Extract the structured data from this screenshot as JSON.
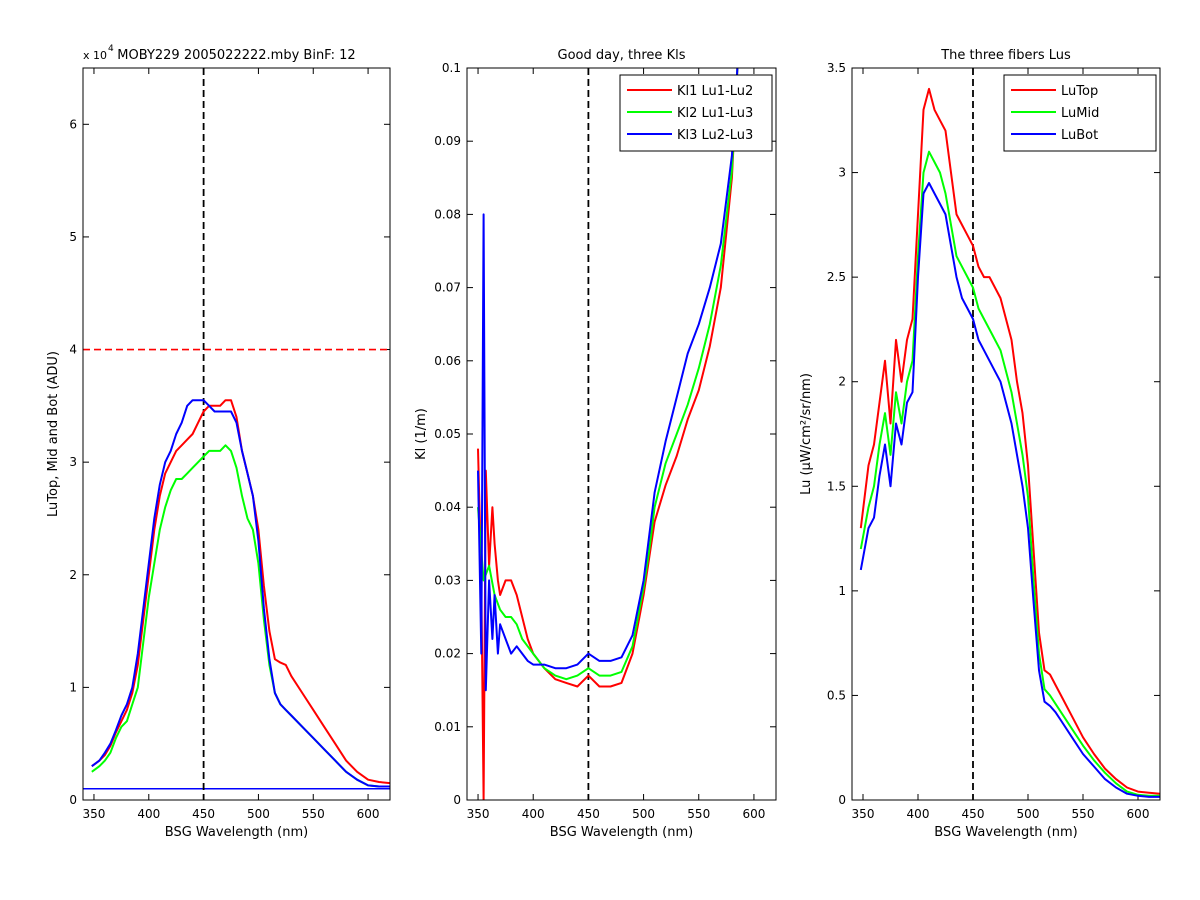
{
  "figure": {
    "background": "#ffffff"
  },
  "chart_data": [
    {
      "type": "line",
      "title": "MOBY229  2005022222.mby BinF: 12",
      "xlabel": "BSG Wavelength (nm)",
      "ylabel": "LuTop, Mid and Bot (ADU)",
      "exponent_label": "x 10",
      "exponent_power": "4",
      "xlim": [
        340,
        620
      ],
      "ylim": [
        0,
        65000
      ],
      "xticks": [
        350,
        400,
        450,
        500,
        550,
        600
      ],
      "yticks": [
        0,
        10000,
        20000,
        30000,
        40000,
        50000,
        60000
      ],
      "ytick_labels": [
        "0",
        "1",
        "2",
        "3",
        "4",
        "5",
        "6"
      ],
      "vline": {
        "x": 450,
        "color": "#000000"
      },
      "hlines": [
        {
          "y": 40000,
          "color": "#ff0000",
          "dashed": true
        },
        {
          "y": 1000,
          "color": "#0000ff",
          "dashed": false
        }
      ],
      "series": [
        {
          "color": "#ff0000",
          "x": [
            348,
            355,
            360,
            365,
            370,
            375,
            380,
            385,
            390,
            395,
            400,
            405,
            410,
            415,
            420,
            425,
            430,
            435,
            440,
            445,
            450,
            455,
            460,
            465,
            470,
            475,
            480,
            485,
            490,
            495,
            500,
            505,
            510,
            515,
            520,
            525,
            530,
            540,
            550,
            560,
            570,
            580,
            590,
            600,
            610,
            620
          ],
          "y": [
            3000,
            3500,
            4000,
            4800,
            6000,
            7000,
            8000,
            9500,
            12000,
            16000,
            20000,
            24000,
            27000,
            29000,
            30000,
            31000,
            31500,
            32000,
            32500,
            33500,
            34500,
            35000,
            35000,
            35000,
            35500,
            35500,
            34000,
            31000,
            29000,
            27000,
            24000,
            19000,
            15000,
            12500,
            12200,
            12000,
            11000,
            9500,
            8000,
            6500,
            5000,
            3500,
            2500,
            1800,
            1600,
            1500
          ]
        },
        {
          "color": "#00ff00",
          "x": [
            348,
            355,
            360,
            365,
            370,
            375,
            380,
            385,
            390,
            395,
            400,
            405,
            410,
            415,
            420,
            425,
            430,
            435,
            440,
            445,
            450,
            455,
            460,
            465,
            470,
            475,
            480,
            485,
            490,
            495,
            500,
            505,
            510,
            515,
            520,
            525,
            530,
            540,
            550,
            560,
            570,
            580,
            590,
            600,
            610,
            620
          ],
          "y": [
            2500,
            3000,
            3500,
            4200,
            5500,
            6500,
            7000,
            8500,
            10000,
            14000,
            18000,
            21000,
            24000,
            26000,
            27500,
            28500,
            28500,
            29000,
            29500,
            30000,
            30500,
            31000,
            31000,
            31000,
            31500,
            31000,
            29500,
            27000,
            25000,
            24000,
            21000,
            16000,
            12000,
            9500,
            8500,
            8000,
            7500,
            6500,
            5500,
            4500,
            3500,
            2500,
            1800,
            1300,
            1200,
            1200
          ]
        },
        {
          "color": "#0000ff",
          "x": [
            348,
            355,
            360,
            365,
            370,
            375,
            380,
            385,
            390,
            395,
            400,
            405,
            410,
            415,
            420,
            425,
            430,
            435,
            440,
            445,
            450,
            455,
            460,
            465,
            470,
            475,
            480,
            485,
            490,
            495,
            500,
            505,
            510,
            515,
            520,
            525,
            530,
            540,
            550,
            560,
            570,
            580,
            590,
            600,
            610,
            620
          ],
          "y": [
            3000,
            3500,
            4200,
            5000,
            6200,
            7500,
            8500,
            10000,
            13000,
            17000,
            21000,
            25000,
            28000,
            30000,
            31000,
            32500,
            33500,
            35000,
            35500,
            35500,
            35500,
            35000,
            34500,
            34500,
            34500,
            34500,
            33500,
            31000,
            29000,
            27000,
            23000,
            17000,
            12500,
            9500,
            8500,
            8000,
            7500,
            6500,
            5500,
            4500,
            3500,
            2500,
            1800,
            1300,
            1200,
            1200
          ]
        }
      ]
    },
    {
      "type": "line",
      "title": "Good day, three Kls",
      "xlabel": "BSG Wavelength (nm)",
      "ylabel": "Kl (1/m)",
      "xlim": [
        340,
        620
      ],
      "ylim": [
        0,
        0.1
      ],
      "xticks": [
        350,
        400,
        450,
        500,
        550,
        600
      ],
      "yticks": [
        0,
        0.01,
        0.02,
        0.03,
        0.04,
        0.05,
        0.06,
        0.07,
        0.08,
        0.09,
        0.1
      ],
      "ytick_labels": [
        "0",
        "0.01",
        "0.02",
        "0.03",
        "0.04",
        "0.05",
        "0.06",
        "0.07",
        "0.08",
        "0.09",
        "0.1"
      ],
      "vline": {
        "x": 450,
        "color": "#000000"
      },
      "legend": {
        "position": "top-right",
        "entries": [
          "Kl1 Lu1-Lu2",
          "Kl2 Lu1-Lu3",
          "Kl3 Lu2-Lu3"
        ]
      },
      "series": [
        {
          "name": "Kl1 Lu1-Lu2",
          "color": "#ff0000",
          "x": [
            350,
            353,
            355,
            357,
            360,
            363,
            365,
            368,
            370,
            375,
            380,
            385,
            390,
            395,
            400,
            410,
            420,
            430,
            440,
            450,
            460,
            470,
            480,
            490,
            500,
            505,
            510,
            520,
            530,
            540,
            550,
            560,
            570,
            580,
            585
          ],
          "y": [
            0.048,
            0.03,
            0,
            0.045,
            0.032,
            0.04,
            0.035,
            0.03,
            0.028,
            0.03,
            0.03,
            0.028,
            0.025,
            0.022,
            0.02,
            0.018,
            0.0165,
            0.016,
            0.0155,
            0.017,
            0.0155,
            0.0155,
            0.016,
            0.02,
            0.028,
            0.033,
            0.038,
            0.043,
            0.047,
            0.052,
            0.056,
            0.062,
            0.07,
            0.085,
            0.1
          ]
        },
        {
          "name": "Kl2 Lu1-Lu3",
          "color": "#00ff00",
          "x": [
            350,
            355,
            360,
            365,
            370,
            375,
            380,
            385,
            390,
            395,
            400,
            410,
            420,
            430,
            440,
            450,
            460,
            470,
            480,
            490,
            500,
            505,
            510,
            520,
            530,
            540,
            550,
            560,
            570,
            580,
            585
          ],
          "y": [
            0.04,
            0.03,
            0.032,
            0.028,
            0.026,
            0.025,
            0.025,
            0.024,
            0.022,
            0.021,
            0.02,
            0.018,
            0.017,
            0.0165,
            0.017,
            0.018,
            0.017,
            0.017,
            0.0175,
            0.021,
            0.029,
            0.034,
            0.04,
            0.046,
            0.05,
            0.054,
            0.059,
            0.065,
            0.073,
            0.086,
            0.1
          ]
        },
        {
          "name": "Kl3 Lu2-Lu3",
          "color": "#0000ff",
          "x": [
            350,
            353,
            355,
            357,
            360,
            363,
            365,
            368,
            370,
            375,
            380,
            385,
            390,
            395,
            400,
            410,
            420,
            430,
            440,
            450,
            460,
            470,
            480,
            490,
            500,
            505,
            510,
            520,
            530,
            540,
            550,
            560,
            570,
            580,
            585
          ],
          "y": [
            0.045,
            0.02,
            0.08,
            0.015,
            0.03,
            0.022,
            0.028,
            0.02,
            0.024,
            0.022,
            0.02,
            0.021,
            0.02,
            0.019,
            0.0185,
            0.0185,
            0.018,
            0.018,
            0.0185,
            0.02,
            0.019,
            0.019,
            0.0195,
            0.0225,
            0.03,
            0.036,
            0.042,
            0.049,
            0.055,
            0.061,
            0.065,
            0.07,
            0.076,
            0.088,
            0.1
          ]
        }
      ]
    },
    {
      "type": "line",
      "title": "The three fibers Lus",
      "xlabel": "BSG Wavelength (nm)",
      "ylabel": "Lu (µW/cm²/sr/nm)",
      "xlim": [
        340,
        620
      ],
      "ylim": [
        0,
        3.5
      ],
      "xticks": [
        350,
        400,
        450,
        500,
        550,
        600
      ],
      "yticks": [
        0,
        0.5,
        1,
        1.5,
        2,
        2.5,
        3,
        3.5
      ],
      "ytick_labels": [
        "0",
        "0.5",
        "1",
        "1.5",
        "2",
        "2.5",
        "3",
        "3.5"
      ],
      "vline": {
        "x": 450,
        "color": "#000000"
      },
      "legend": {
        "position": "top-right",
        "entries": [
          "LuTop",
          "LuMid",
          "LuBot"
        ]
      },
      "series": [
        {
          "name": "LuTop",
          "color": "#ff0000",
          "x": [
            348,
            355,
            360,
            365,
            370,
            375,
            380,
            385,
            390,
            395,
            400,
            405,
            410,
            415,
            420,
            425,
            430,
            435,
            440,
            445,
            450,
            455,
            460,
            465,
            470,
            475,
            480,
            485,
            490,
            495,
            500,
            505,
            510,
            515,
            520,
            525,
            530,
            540,
            550,
            560,
            570,
            580,
            590,
            600,
            610,
            620
          ],
          "y": [
            1.3,
            1.6,
            1.7,
            1.9,
            2.1,
            1.8,
            2.2,
            2.0,
            2.2,
            2.3,
            2.8,
            3.3,
            3.4,
            3.3,
            3.25,
            3.2,
            3.0,
            2.8,
            2.75,
            2.7,
            2.65,
            2.55,
            2.5,
            2.5,
            2.45,
            2.4,
            2.3,
            2.2,
            2.0,
            1.85,
            1.6,
            1.2,
            0.8,
            0.62,
            0.6,
            0.55,
            0.5,
            0.4,
            0.3,
            0.22,
            0.15,
            0.1,
            0.06,
            0.04,
            0.035,
            0.03
          ]
        },
        {
          "name": "LuMid",
          "color": "#00ff00",
          "x": [
            348,
            355,
            360,
            365,
            370,
            375,
            380,
            385,
            390,
            395,
            400,
            405,
            410,
            415,
            420,
            425,
            430,
            435,
            440,
            445,
            450,
            455,
            460,
            465,
            470,
            475,
            480,
            485,
            490,
            495,
            500,
            505,
            510,
            515,
            520,
            525,
            530,
            540,
            550,
            560,
            570,
            580,
            590,
            600,
            610,
            620
          ],
          "y": [
            1.2,
            1.4,
            1.5,
            1.7,
            1.85,
            1.65,
            1.95,
            1.8,
            2.0,
            2.1,
            2.6,
            3.0,
            3.1,
            3.05,
            3.0,
            2.9,
            2.75,
            2.6,
            2.55,
            2.5,
            2.45,
            2.35,
            2.3,
            2.25,
            2.2,
            2.15,
            2.05,
            1.95,
            1.8,
            1.65,
            1.45,
            1.05,
            0.7,
            0.53,
            0.5,
            0.46,
            0.42,
            0.34,
            0.26,
            0.19,
            0.13,
            0.08,
            0.04,
            0.025,
            0.02,
            0.02
          ]
        },
        {
          "name": "LuBot",
          "color": "#0000ff",
          "x": [
            348,
            355,
            360,
            365,
            370,
            375,
            380,
            385,
            390,
            395,
            400,
            405,
            410,
            415,
            420,
            425,
            430,
            435,
            440,
            445,
            450,
            455,
            460,
            465,
            470,
            475,
            480,
            485,
            490,
            495,
            500,
            505,
            510,
            515,
            520,
            525,
            530,
            540,
            550,
            560,
            570,
            580,
            590,
            600,
            610,
            620
          ],
          "y": [
            1.1,
            1.3,
            1.35,
            1.55,
            1.7,
            1.5,
            1.8,
            1.7,
            1.9,
            1.95,
            2.5,
            2.9,
            2.95,
            2.9,
            2.85,
            2.8,
            2.65,
            2.5,
            2.4,
            2.35,
            2.3,
            2.2,
            2.15,
            2.1,
            2.05,
            2.0,
            1.9,
            1.8,
            1.65,
            1.5,
            1.3,
            0.95,
            0.62,
            0.47,
            0.45,
            0.42,
            0.38,
            0.3,
            0.22,
            0.16,
            0.1,
            0.06,
            0.03,
            0.02,
            0.015,
            0.015
          ]
        }
      ]
    }
  ]
}
